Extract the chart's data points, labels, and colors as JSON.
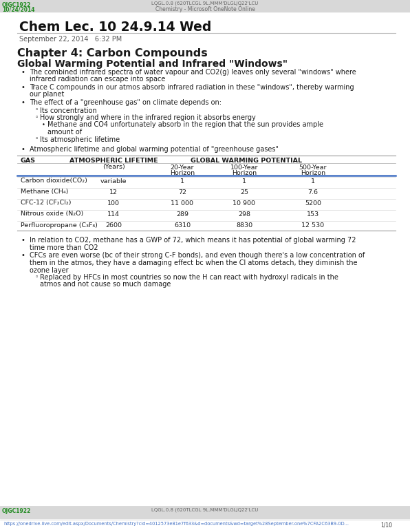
{
  "title": "Chem Lec. 10 24.9.14 Wed",
  "date_line": "September 22, 2014   6:32 PM",
  "header_top_left": "OJGC1922",
  "header_top_left2": "10/24/2014",
  "header_top_center": "LQGL.0.8 (620TLCGL 9L.MMM'DLGLJQ22'LCU",
  "header_top_center2": "Chemistry - Microsoft OneNote Online",
  "chapter_heading": "Chapter 4: Carbon Compounds",
  "section_heading": "Global Warming Potential and Infrared \"Windows\"",
  "bullet1": "The combined infrared spectra of water vapour and CO2(g) leaves only several \"windows\" where infrared radiation can escape into space",
  "bullet2": "Trace C compounds in our atmos absorb infrared radiation in these \"windows\", thereby warming our planet",
  "bullet3": "The effect of a \"greenhouse gas\" on climate depends on:",
  "sub1": "Its concentration",
  "sub2": "How strongly and where in the infrared region it absorbs energy",
  "subsub1_line1": "Methane and CO4 unfortunately absorb in the region that the sun provides ample",
  "subsub1_line2": "amount of",
  "sub3": "Its atmospheric lifetime",
  "table_intro": "Atmospheric lifetime and global warming potential of \"greenhouse gases\"",
  "col1_header": "GAS",
  "col2_header": "ATMOSPHERIC LIFETIME",
  "col3_header": "GLOBAL WARMING POTENTIAL",
  "sub_years": "(Years)",
  "sub_20y": "20-Year\nHorizon",
  "sub_100y": "100-Year\nHorizon",
  "sub_500y": "500-Year\nHorizon",
  "rows": [
    [
      "Carbon dioxide(CO₂)",
      "variable",
      "1",
      "1",
      "1"
    ],
    [
      "Methane (CH₄)",
      "12",
      "72",
      "25",
      "7.6"
    ],
    [
      "CFC-12 (CF₂Cl₂)",
      "100",
      "11 000",
      "10 900",
      "5200"
    ],
    [
      "Nitrous oxide (N₂O)",
      "114",
      "289",
      "298",
      "153"
    ],
    [
      "Perfluoropropane (C₃F₈)",
      "2600",
      "6310",
      "8830",
      "12 530"
    ]
  ],
  "after1_line1": "In relation to CO2, methane has a GWP of 72, which means it has potential of global warming 72",
  "after1_line2": "time more than CO2",
  "after2_line1": "CFCs are even worse (bc of their strong C-F bonds), and even though there's a low concentration of",
  "after2_line2": "them in the atmos, they have a damaging effect bc when the Cl atoms detach, they diminish the",
  "after2_line3": "ozone layer",
  "aftersub1_line1": "Replaced by HFCs in most countries so now the H can react with hydroxyl radicals in the",
  "aftersub1_line2": "atmos and not cause so much damage",
  "footer_left1": "OJGC1922",
  "footer_center": "LQGL.0.8 (620TLCGL 9L.MMM'DLGLJQ22'LCU",
  "footer_url": "https://onedrive.live.com/edit.aspx/Documents/Chemistry?cid=4012573e81e7f633&d=documents&wd=target%28September.one%7CFA2C63B9-0D...",
  "page_num": "1/10",
  "green_color": "#228B22",
  "blue_link": "#4472C4",
  "gray_text": "#555555",
  "dark_text": "#1a1a1a",
  "table_blue": "#4472C4",
  "header_bar_color": "#d8d8d8"
}
